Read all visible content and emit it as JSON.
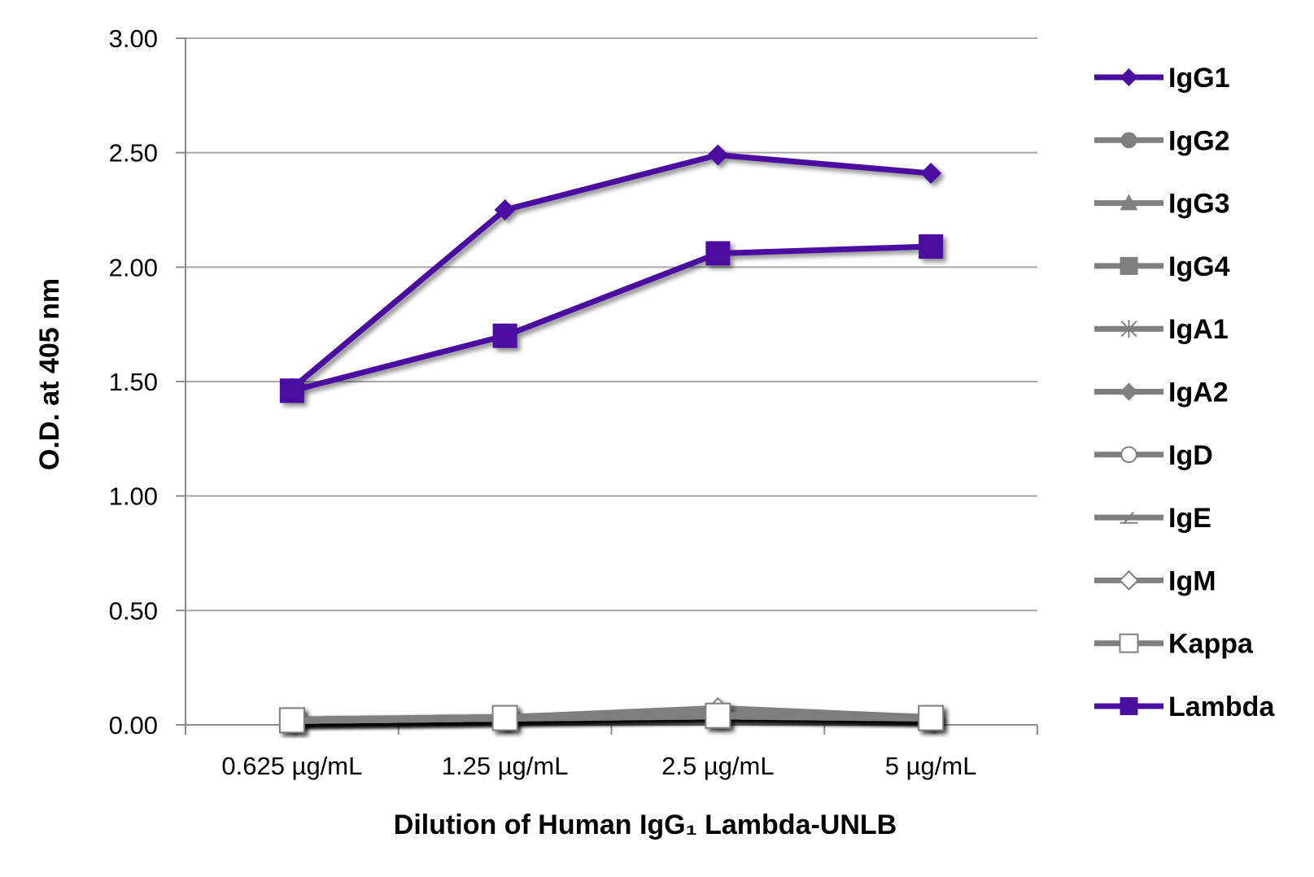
{
  "chart_data": {
    "type": "line",
    "title": "",
    "xlabel": "Dilution of Human IgG₁ Lambda-UNLB",
    "ylabel": "O.D. at 405 nm",
    "categories": [
      "0.625 µg/mL",
      "1.25 µg/mL",
      "2.5 µg/mL",
      "5 µg/mL"
    ],
    "ylim": [
      0,
      3
    ],
    "yticks": [
      "0.00",
      "0.50",
      "1.00",
      "1.50",
      "2.00",
      "2.50",
      "3.00"
    ],
    "grid": true,
    "legend_position": "right",
    "series": [
      {
        "name": "IgG1",
        "marker": "diamond",
        "color": "#4b0fa0",
        "values": [
          1.47,
          2.25,
          2.49,
          2.41
        ]
      },
      {
        "name": "IgG2",
        "marker": "circle",
        "color": "#7f7f7f",
        "values": [
          0.02,
          0.03,
          0.04,
          0.03
        ]
      },
      {
        "name": "IgG3",
        "marker": "triangle",
        "color": "#7f7f7f",
        "values": [
          0.02,
          0.03,
          0.04,
          0.03
        ]
      },
      {
        "name": "IgG4",
        "marker": "square",
        "color": "#7f7f7f",
        "values": [
          0.02,
          0.03,
          0.04,
          0.03
        ]
      },
      {
        "name": "IgA1",
        "marker": "asterisk",
        "color": "#7f7f7f",
        "values": [
          0.02,
          0.03,
          0.04,
          0.03
        ]
      },
      {
        "name": "IgA2",
        "marker": "diamond",
        "color": "#7f7f7f",
        "values": [
          0.02,
          0.03,
          0.04,
          0.03
        ]
      },
      {
        "name": "IgD",
        "marker": "circle-open",
        "color": "#7f7f7f",
        "values": [
          0.02,
          0.03,
          0.05,
          0.03
        ]
      },
      {
        "name": "IgE",
        "marker": "dash-slash",
        "color": "#7f7f7f",
        "values": [
          0.02,
          0.03,
          0.05,
          0.03
        ]
      },
      {
        "name": "IgM",
        "marker": "diamond-open",
        "color": "#7f7f7f",
        "values": [
          0.02,
          0.03,
          0.07,
          0.03
        ]
      },
      {
        "name": "Kappa",
        "marker": "square-open",
        "color": "#7f7f7f",
        "values": [
          0.02,
          0.03,
          0.04,
          0.03
        ]
      },
      {
        "name": "Lambda",
        "marker": "square",
        "color": "#4b0fa0",
        "values": [
          1.46,
          1.7,
          2.06,
          2.09
        ]
      }
    ]
  }
}
